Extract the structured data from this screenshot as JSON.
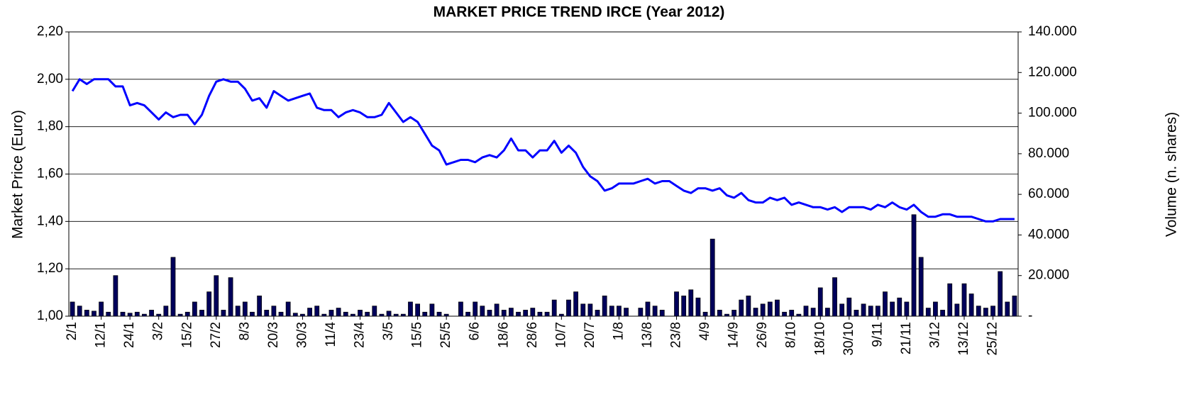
{
  "chart_data": {
    "type": "bar-line",
    "title": "MARKET PRICE TREND IRCE (Year 2012)",
    "y_label": "Market Price (Euro)",
    "y2_label": "Volume (n. shares)",
    "categories": [
      "2/1",
      null,
      null,
      null,
      "12/1",
      null,
      null,
      null,
      "24/1",
      null,
      null,
      null,
      "3/2",
      null,
      null,
      null,
      "15/2",
      null,
      null,
      null,
      "27/2",
      null,
      null,
      null,
      "8/3",
      null,
      null,
      null,
      "20/3",
      null,
      null,
      null,
      "30/3",
      null,
      null,
      null,
      "11/4",
      null,
      null,
      null,
      "23/4",
      null,
      null,
      null,
      "3/5",
      null,
      null,
      null,
      "15/5",
      null,
      null,
      null,
      "25/5",
      null,
      null,
      null,
      "6/6",
      null,
      null,
      null,
      "18/6",
      null,
      null,
      null,
      "28/6",
      null,
      null,
      null,
      "10/7",
      null,
      null,
      null,
      "20/7",
      null,
      null,
      null,
      "1/8",
      null,
      null,
      null,
      "13/8",
      null,
      null,
      null,
      "23/8",
      null,
      null,
      null,
      "4/9",
      null,
      null,
      null,
      "14/9",
      null,
      null,
      null,
      "26/9",
      null,
      null,
      null,
      "8/10",
      null,
      null,
      null,
      "18/10",
      null,
      null,
      null,
      "30/10",
      null,
      null,
      null,
      "9/11",
      null,
      null,
      null,
      "21/11",
      null,
      null,
      null,
      "3/12",
      null,
      null,
      null,
      "13/12",
      null,
      null,
      null,
      "25/12",
      null,
      null,
      null
    ],
    "series": [
      {
        "type": "bar",
        "axis": "y2",
        "color": "#00005a",
        "values": [
          7000,
          5000,
          3000,
          2500,
          7000,
          2000,
          20000,
          2000,
          1500,
          2000,
          1000,
          3000,
          1000,
          5000,
          29000,
          1000,
          2000,
          7000,
          3000,
          12000,
          20000,
          3000,
          19000,
          5000,
          7000,
          2000,
          10000,
          3000,
          5000,
          2000,
          7000,
          1500,
          1000,
          4000,
          5000,
          1000,
          3000,
          4000,
          2000,
          1000,
          3000,
          2000,
          5000,
          1000,
          2500,
          1000,
          1000,
          7000,
          6000,
          2000,
          6000,
          2000,
          1000,
          0,
          7000,
          2000,
          7000,
          5000,
          3000,
          6000,
          3000,
          4000,
          2000,
          3000,
          4000,
          2000,
          2000,
          8000,
          1000,
          8000,
          12000,
          6000,
          6000,
          3000,
          10000,
          5000,
          5000,
          4000,
          0,
          4000,
          7000,
          5000,
          3000,
          0,
          12000,
          10000,
          13000,
          9000,
          2000,
          38000,
          3000,
          1000,
          3000,
          8000,
          10000,
          4000,
          6000,
          7000,
          8000,
          2000,
          3000,
          1000,
          5000,
          4000,
          14000,
          4000,
          19000,
          6000,
          9000,
          3000,
          6000,
          5000,
          5000,
          12000,
          7000,
          9000,
          7000,
          50000,
          29000,
          4000,
          7000,
          3000,
          16000,
          6000,
          16000,
          11000,
          5000,
          4000,
          5000,
          22000,
          7000,
          10000
        ]
      },
      {
        "type": "line",
        "axis": "y",
        "color": "#0000ff",
        "values": [
          1.95,
          2.0,
          1.98,
          2.0,
          2.0,
          2.0,
          1.97,
          1.97,
          1.89,
          1.9,
          1.89,
          1.86,
          1.83,
          1.86,
          1.84,
          1.85,
          1.85,
          1.81,
          1.85,
          1.93,
          1.99,
          2.0,
          1.99,
          1.99,
          1.96,
          1.91,
          1.92,
          1.88,
          1.95,
          1.93,
          1.91,
          1.92,
          1.93,
          1.94,
          1.88,
          1.87,
          1.87,
          1.84,
          1.86,
          1.87,
          1.86,
          1.84,
          1.84,
          1.85,
          1.9,
          1.86,
          1.82,
          1.84,
          1.82,
          1.77,
          1.72,
          1.7,
          1.64,
          1.65,
          1.66,
          1.66,
          1.65,
          1.67,
          1.68,
          1.67,
          1.7,
          1.75,
          1.7,
          1.7,
          1.67,
          1.7,
          1.7,
          1.74,
          1.69,
          1.72,
          1.69,
          1.63,
          1.59,
          1.57,
          1.53,
          1.54,
          1.56,
          1.56,
          1.56,
          1.57,
          1.58,
          1.56,
          1.57,
          1.57,
          1.55,
          1.53,
          1.52,
          1.54,
          1.54,
          1.53,
          1.54,
          1.51,
          1.5,
          1.52,
          1.49,
          1.48,
          1.48,
          1.5,
          1.49,
          1.5,
          1.47,
          1.48,
          1.47,
          1.46,
          1.46,
          1.45,
          1.46,
          1.44,
          1.46,
          1.46,
          1.46,
          1.45,
          1.47,
          1.46,
          1.48,
          1.46,
          1.45,
          1.47,
          1.44,
          1.42,
          1.42,
          1.43,
          1.43,
          1.42,
          1.42,
          1.42,
          1.41,
          1.4,
          1.4,
          1.41,
          1.41,
          1.41
        ]
      }
    ],
    "ylim": [
      1.0,
      2.2
    ],
    "yticks": [
      {
        "value": 1.0,
        "label": "1,00"
      },
      {
        "value": 1.2,
        "label": "1,20"
      },
      {
        "value": 1.4,
        "label": "1,40"
      },
      {
        "value": 1.6,
        "label": "1,60"
      },
      {
        "value": 1.8,
        "label": "1,80"
      },
      {
        "value": 2.0,
        "label": "2,00"
      },
      {
        "value": 2.2,
        "label": "2,20"
      }
    ],
    "y2lim": [
      0,
      140000
    ],
    "y2ticks": [
      {
        "value": 0,
        "label": "-"
      },
      {
        "value": 20000,
        "label": "20.000"
      },
      {
        "value": 40000,
        "label": "40.000"
      },
      {
        "value": 60000,
        "label": "60.000"
      },
      {
        "value": 80000,
        "label": "80.000"
      },
      {
        "value": 100000,
        "label": "100.000"
      },
      {
        "value": 120000,
        "label": "120.000"
      },
      {
        "value": 140000,
        "label": "140.000"
      }
    ],
    "grid": true
  }
}
